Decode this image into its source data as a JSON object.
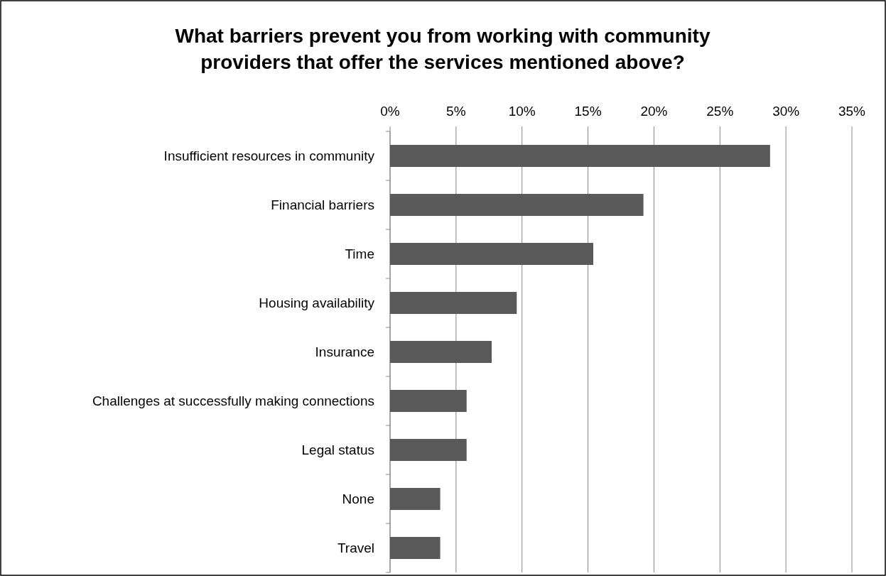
{
  "chart_data": {
    "type": "bar",
    "orientation": "horizontal",
    "title": "What barriers prevent you from working with community providers that offer the services mentioned above?",
    "categories": [
      "Insufficient resources in community",
      "Financial barriers",
      "Time",
      "Housing availability",
      "Insurance",
      "Challenges at successfully making connections",
      "Legal status",
      "None",
      "Travel"
    ],
    "values": [
      28.8,
      19.2,
      15.4,
      9.6,
      7.7,
      5.8,
      5.8,
      3.8,
      3.8
    ],
    "color": "#595959",
    "xlim": [
      0,
      35
    ],
    "xticks": [
      {
        "value": 0,
        "label": "0%"
      },
      {
        "value": 5,
        "label": "5%"
      },
      {
        "value": 10,
        "label": "10%"
      },
      {
        "value": 15,
        "label": "15%"
      },
      {
        "value": 20,
        "label": "20%"
      },
      {
        "value": 25,
        "label": "25%"
      },
      {
        "value": 30,
        "label": "30%"
      },
      {
        "value": 35,
        "label": "35%"
      }
    ],
    "grid": "x"
  }
}
